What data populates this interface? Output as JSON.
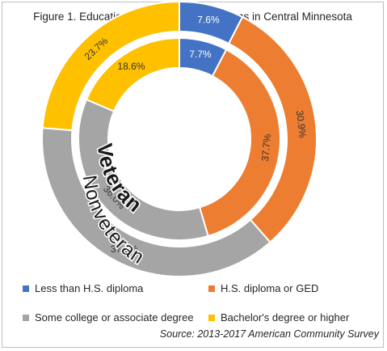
{
  "chart_data": {
    "type": "doughnut",
    "title": "Figure 1. Educational Attainment of Veterans in Central Minnesota",
    "categories": [
      "Less than H.S. diploma",
      "H.S. diploma or GED",
      "Some college or associate degree",
      "Bachelor's degree or higher"
    ],
    "colors": [
      "#4472c4",
      "#ed7d31",
      "#a5a5a5",
      "#ffc000"
    ],
    "series": [
      {
        "name": "Veteran",
        "ring": "inner",
        "values": [
          7.7,
          37.7,
          36.0,
          18.6
        ],
        "labels": [
          "7.7%",
          "37.7%",
          "36.0%",
          "18.6%"
        ]
      },
      {
        "name": "Nonveteran",
        "ring": "outer",
        "values": [
          7.6,
          30.9,
          37.8,
          23.7
        ],
        "labels": [
          "7.6%",
          "30.9%",
          "37.8%",
          "23.7%"
        ]
      }
    ],
    "legend_position": "bottom",
    "source": "Source: 2013-2017 American Community Survey"
  }
}
